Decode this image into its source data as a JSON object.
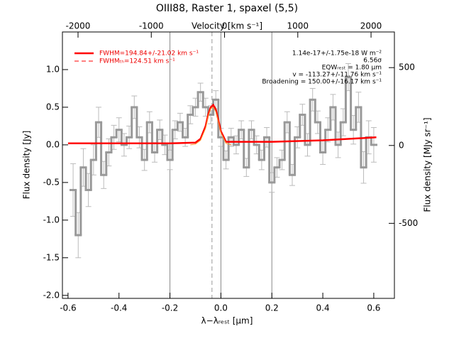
{
  "chart_data": {
    "type": "spectrum",
    "title": "OIII88, Raster 1, spaxel (5,5)",
    "xlabel": "λ−λᵣₑₛₜ [μm]",
    "ylabel": "Flux density [Jy]",
    "x2label": "Velocity [km s⁻¹]",
    "y2label": "Flux density [MJy sr⁻¹]",
    "xlim": [
      -0.622,
      0.681
    ],
    "ylim": [
      -2.04,
      1.5
    ],
    "x2lim": [
      -2213,
      2319
    ],
    "y2lim": [
      -982,
      729
    ],
    "xticks": [
      -0.6,
      -0.4,
      -0.2,
      {
        "value": 0,
        "label": "0.0"
      },
      0.2,
      0.4,
      0.6
    ],
    "yticks": [
      {
        "value": 1,
        "label": "1.0"
      },
      0.5,
      {
        "value": 0,
        "label": "0.0"
      },
      -0.5,
      {
        "value": -1,
        "label": "-1.0"
      },
      -1.5,
      {
        "value": -2,
        "label": "-2.0"
      }
    ],
    "x2ticks": [
      -2000,
      -1000,
      0,
      1000,
      2000
    ],
    "y2ticks": [
      500,
      0,
      -500
    ],
    "vlines": [
      -0.2,
      0,
      0.2
    ],
    "dashed_vline": -0.035,
    "spectrum": {
      "color": "#999999",
      "x": [
        -0.58,
        -0.56,
        -0.54,
        -0.52,
        -0.5,
        -0.48,
        -0.46,
        -0.44,
        -0.42,
        -0.4,
        -0.38,
        -0.36,
        -0.34,
        -0.32,
        -0.3,
        -0.28,
        -0.26,
        -0.24,
        -0.22,
        -0.2,
        -0.18,
        -0.16,
        -0.14,
        -0.12,
        -0.1,
        -0.08,
        -0.06,
        -0.04,
        -0.02,
        0,
        0.02,
        0.04,
        0.06,
        0.08,
        0.1,
        0.12,
        0.14,
        0.16,
        0.18,
        0.2,
        0.22,
        0.24,
        0.26,
        0.28,
        0.3,
        0.32,
        0.34,
        0.36,
        0.38,
        0.4,
        0.42,
        0.44,
        0.46,
        0.48,
        0.5,
        0.52,
        0.54,
        0.56,
        0.58,
        0.6
      ],
      "values": [
        -0.6,
        -1.2,
        -0.3,
        -0.6,
        -0.2,
        0.3,
        -0.4,
        -0.1,
        0.1,
        0.2,
        0,
        0.1,
        0.5,
        0.1,
        -0.2,
        0.3,
        -0.1,
        0.2,
        0,
        -0.2,
        0.2,
        0.3,
        0.1,
        0.4,
        0.5,
        0.7,
        0.5,
        0.4,
        0.6,
        0.1,
        -0.2,
        0.1,
        0,
        0.2,
        -0.3,
        0.2,
        0,
        -0.2,
        0.1,
        -0.5,
        -0.3,
        -0.2,
        0.3,
        -0.4,
        0.1,
        0.4,
        0,
        0.6,
        0.3,
        -0.1,
        0.2,
        0.5,
        0,
        0.3,
        0.9,
        0.2,
        0.5,
        -0.3,
        0.1,
        0
      ],
      "errors": [
        0.35,
        0.3,
        0.25,
        0.22,
        0.2,
        0.2,
        0.18,
        0.18,
        0.16,
        0.16,
        0.15,
        0.15,
        0.15,
        0.14,
        0.14,
        0.14,
        0.13,
        0.13,
        0.13,
        0.13,
        0.12,
        0.12,
        0.12,
        0.12,
        0.12,
        0.12,
        0.12,
        0.12,
        0.12,
        0.12,
        0.12,
        0.12,
        0.12,
        0.12,
        0.12,
        0.12,
        0.12,
        0.13,
        0.13,
        0.13,
        0.13,
        0.13,
        0.14,
        0.14,
        0.14,
        0.14,
        0.15,
        0.15,
        0.15,
        0.16,
        0.16,
        0.17,
        0.17,
        0.18,
        0.18,
        0.19,
        0.2,
        0.21,
        0.22,
        0.23
      ]
    },
    "series": [
      {
        "name": "FWHM=194.84+/-21.02 km s⁻¹",
        "color": "#ff0000",
        "x": [
          -0.6,
          -0.2,
          -0.1,
          -0.08,
          -0.06,
          -0.05,
          -0.04,
          -0.03,
          -0.02,
          -0.01,
          0,
          0.02,
          0.2,
          0.4,
          0.61
        ],
        "values": [
          0.02,
          0.02,
          0.03,
          0.08,
          0.25,
          0.4,
          0.5,
          0.53,
          0.47,
          0.33,
          0.18,
          0.04,
          0.04,
          0.06,
          0.1
        ]
      },
      {
        "name": "FWHMₜₕ=124.51 km s⁻¹",
        "color": "#ff0000",
        "dash": true,
        "x": [],
        "values": []
      },
      {
        "color": "#ff9933",
        "x": [
          -0.12,
          -0.1,
          -0.08,
          -0.06,
          -0.05,
          -0.04,
          -0.03,
          -0.02,
          -0.01,
          0,
          0.02,
          0.04
        ],
        "values": [
          0,
          0.01,
          0.06,
          0.22,
          0.38,
          0.48,
          0.5,
          0.44,
          0.31,
          0.16,
          0.02,
          0
        ]
      }
    ],
    "annotations": [
      "1.14e-17+/-1.75e-18 W m⁻²",
      "6.56σ",
      "EQWᵣₑₛₜ = 1.80 μm",
      "v = -113.27+/-11.76 km s⁻¹",
      "Broadening = 150.00+/-16.17 km s⁻¹"
    ]
  }
}
